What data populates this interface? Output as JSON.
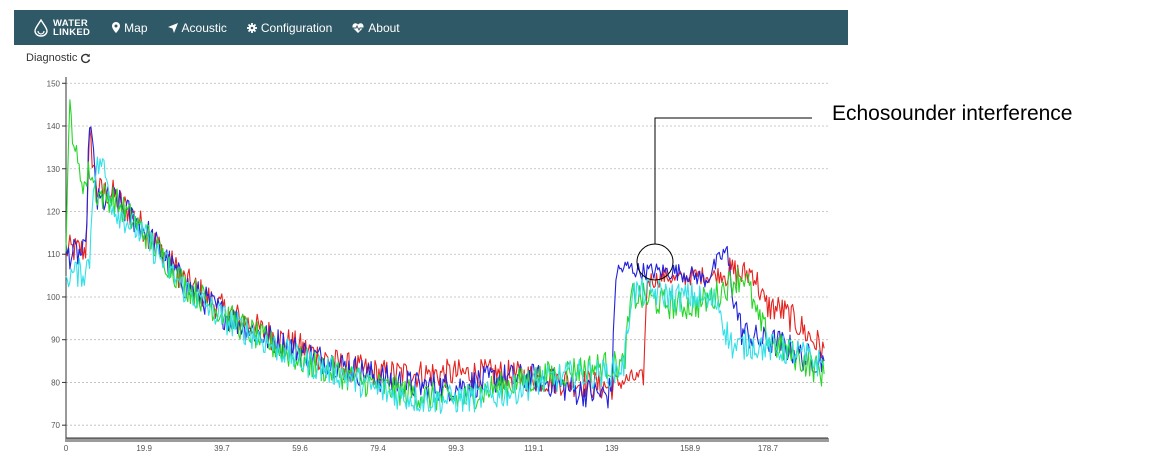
{
  "navbar": {
    "brand_line1": "WATER",
    "brand_line2": "LINKED",
    "items": [
      {
        "label": "Map",
        "icon": "map-marker-icon"
      },
      {
        "label": "Acoustic",
        "icon": "location-arrow-icon"
      },
      {
        "label": "Configuration",
        "icon": "gear-icon"
      },
      {
        "label": "About",
        "icon": "heartbeat-icon"
      }
    ]
  },
  "diagnostic": {
    "label": "Diagnostic"
  },
  "annotation": {
    "text": "Echosounder interference"
  },
  "colors": {
    "navbar": "#2f5966",
    "red": "#e6231f",
    "blue": "#2222dd",
    "green": "#27d627",
    "cyan": "#33e0e8"
  },
  "chart_data": {
    "type": "line",
    "title": "",
    "xlabel": "",
    "ylabel": "",
    "xlim": [
      0,
      194
    ],
    "ylim": [
      67,
      151
    ],
    "yticks": [
      70,
      80,
      90,
      100,
      110,
      120,
      130,
      140,
      150
    ],
    "xticks": [
      "0",
      "19.9",
      "39.7",
      "59.6",
      "79.4",
      "99.3",
      "119.1",
      "139",
      "158.9",
      "178.7"
    ],
    "xtick_values": [
      0,
      19.9,
      39.7,
      59.6,
      79.4,
      99.3,
      119.1,
      139,
      158.9,
      178.7
    ],
    "grid": true,
    "series": [
      {
        "color": "#e6231f",
        "points": [
          [
            0,
            111
          ],
          [
            5,
            111
          ],
          [
            6,
            137
          ],
          [
            8,
            125
          ],
          [
            12,
            124
          ],
          [
            20,
            116
          ],
          [
            30,
            104
          ],
          [
            40,
            97
          ],
          [
            50,
            92
          ],
          [
            60,
            88
          ],
          [
            70,
            84
          ],
          [
            80,
            82
          ],
          [
            90,
            82
          ],
          [
            100,
            82
          ],
          [
            110,
            82
          ],
          [
            120,
            81
          ],
          [
            130,
            80
          ],
          [
            138,
            79
          ],
          [
            144,
            81
          ],
          [
            147,
            81
          ],
          [
            148,
            104
          ],
          [
            150,
            104
          ],
          [
            153,
            105
          ],
          [
            155,
            104
          ],
          [
            160,
            105
          ],
          [
            165,
            105
          ],
          [
            170,
            106
          ],
          [
            172,
            105
          ],
          [
            175,
            106
          ],
          [
            178,
            98
          ],
          [
            182,
            97
          ],
          [
            186,
            94
          ],
          [
            190,
            90
          ],
          [
            193,
            88
          ]
        ]
      },
      {
        "color": "#2222dd",
        "points": [
          [
            0,
            110
          ],
          [
            5,
            110
          ],
          [
            6,
            142
          ],
          [
            8,
            122
          ],
          [
            12,
            123
          ],
          [
            20,
            116
          ],
          [
            30,
            103
          ],
          [
            40,
            96
          ],
          [
            50,
            91
          ],
          [
            60,
            87
          ],
          [
            70,
            84
          ],
          [
            80,
            81
          ],
          [
            90,
            79
          ],
          [
            100,
            79
          ],
          [
            110,
            81
          ],
          [
            120,
            81
          ],
          [
            130,
            78
          ],
          [
            138,
            77
          ],
          [
            139,
            80
          ],
          [
            140,
            106
          ],
          [
            143,
            107
          ],
          [
            146,
            106
          ],
          [
            150,
            106
          ],
          [
            155,
            106
          ],
          [
            160,
            105
          ],
          [
            163,
            104
          ],
          [
            165,
            107
          ],
          [
            168,
            111
          ],
          [
            170,
            100
          ],
          [
            172,
            92
          ],
          [
            176,
            90
          ],
          [
            182,
            89
          ],
          [
            188,
            86
          ],
          [
            193,
            85
          ]
        ]
      },
      {
        "color": "#27d627",
        "points": [
          [
            0,
            114
          ],
          [
            1,
            144
          ],
          [
            3,
            130
          ],
          [
            5,
            126
          ],
          [
            6,
            130
          ],
          [
            8,
            124
          ],
          [
            12,
            123
          ],
          [
            20,
            115
          ],
          [
            30,
            103
          ],
          [
            40,
            96
          ],
          [
            50,
            90
          ],
          [
            60,
            85
          ],
          [
            70,
            82
          ],
          [
            80,
            79
          ],
          [
            90,
            77
          ],
          [
            100,
            76
          ],
          [
            110,
            79
          ],
          [
            120,
            81
          ],
          [
            130,
            83
          ],
          [
            138,
            84
          ],
          [
            142,
            84
          ],
          [
            144,
            100
          ],
          [
            146,
            100
          ],
          [
            150,
            99
          ],
          [
            155,
            98
          ],
          [
            160,
            98
          ],
          [
            165,
            100
          ],
          [
            170,
            104
          ],
          [
            173,
            105
          ],
          [
            176,
            95
          ],
          [
            180,
            89
          ],
          [
            186,
            86
          ],
          [
            193,
            82
          ]
        ]
      },
      {
        "color": "#33e0e8",
        "points": [
          [
            0,
            105
          ],
          [
            5,
            106
          ],
          [
            6,
            109
          ],
          [
            7,
            128
          ],
          [
            9,
            132
          ],
          [
            12,
            121
          ],
          [
            20,
            114
          ],
          [
            30,
            102
          ],
          [
            40,
            95
          ],
          [
            50,
            90
          ],
          [
            60,
            85
          ],
          [
            70,
            82
          ],
          [
            80,
            78
          ],
          [
            90,
            76
          ],
          [
            100,
            76
          ],
          [
            110,
            77
          ],
          [
            120,
            80
          ],
          [
            130,
            82
          ],
          [
            138,
            82
          ],
          [
            142,
            84
          ],
          [
            144,
            101
          ],
          [
            146,
            101
          ],
          [
            150,
            101
          ],
          [
            155,
            100
          ],
          [
            160,
            100
          ],
          [
            163,
            99
          ],
          [
            166,
            99
          ],
          [
            168,
            92
          ],
          [
            170,
            88
          ],
          [
            174,
            89
          ],
          [
            180,
            88
          ],
          [
            186,
            87
          ],
          [
            193,
            84
          ]
        ]
      }
    ]
  }
}
